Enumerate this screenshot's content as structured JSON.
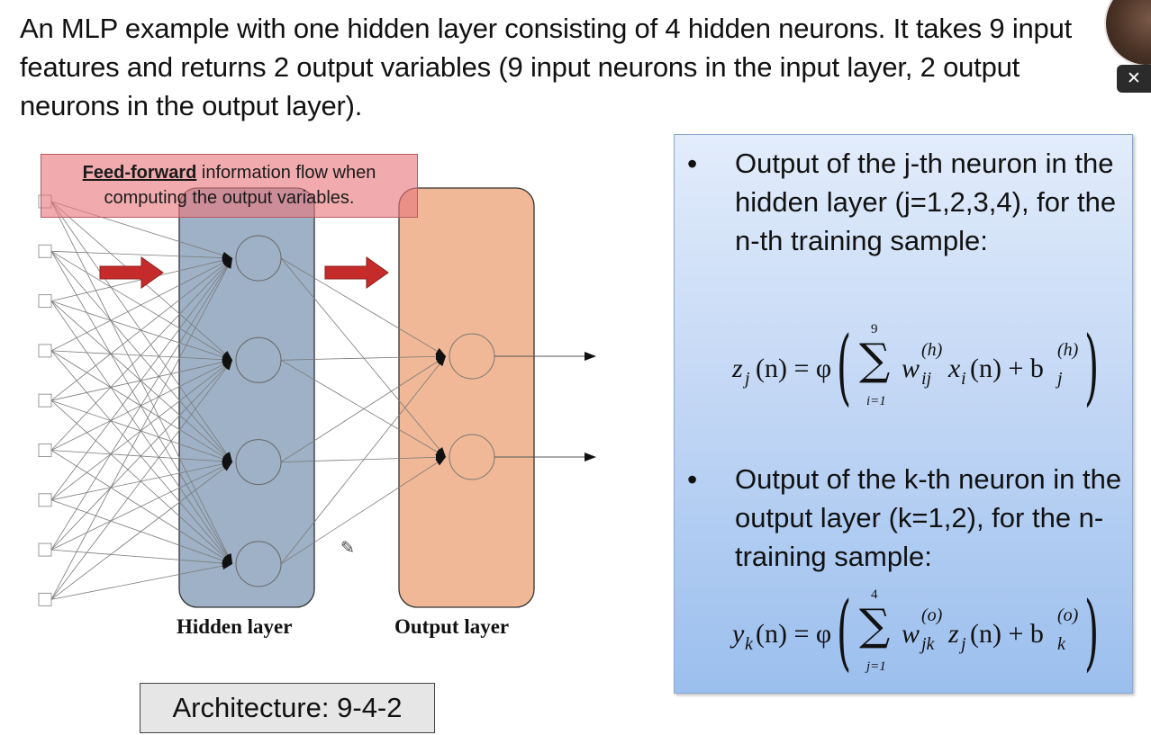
{
  "intro": "An MLP example with one hidden layer consisting of 4 hidden neurons. It takes 9 input features and returns 2 output variables (9 input neurons in the input layer, 2 output neurons in the output layer).",
  "close_icon": "close-icon",
  "feed_forward": {
    "bold": "Feed-forward",
    "rest": " information flow when computing the output variables."
  },
  "layers": {
    "hidden": "Hidden layer",
    "output": "Output layer"
  },
  "architecture": "Architecture: 9-4-2",
  "bullets": [
    {
      "marker": "•",
      "text": "Output of the j-th neuron in the hidden layer (j=1,2,3,4), for the n-th training sample:"
    },
    {
      "marker": "•",
      "text": "Output of the k-th neuron in the output layer (k=1,2), for the n-training sample:"
    }
  ],
  "equations": {
    "eq1": {
      "lhs": "z",
      "lhs_sub": "j",
      "arg": "(n) = φ",
      "sum_top": "9",
      "sum_bottom": "i=1",
      "w": "w",
      "w_sup": "(h)",
      "w_sub": "ij",
      "x": "x",
      "x_sub": "i",
      "x_arg": "(n) + b",
      "b_sup": "(h)",
      "b_sub": "j"
    },
    "eq2": {
      "lhs": "y",
      "lhs_sub": "k",
      "arg": "(n) = φ",
      "sum_top": "4",
      "sum_bottom": "j=1",
      "w": "w",
      "w_sup": "(o)",
      "w_sub": "jk",
      "x": "z",
      "x_sub": "j",
      "x_arg": "(n) + b",
      "b_sup": "(o)",
      "b_sub": "k"
    }
  },
  "network": {
    "input_count": 9,
    "hidden_count": 4,
    "output_count": 2,
    "colors": {
      "hidden_box": "#9fb1c6",
      "output_box": "#f0b896",
      "arrow_red": "#c62b2b",
      "connection": "#7a7a7a"
    }
  }
}
